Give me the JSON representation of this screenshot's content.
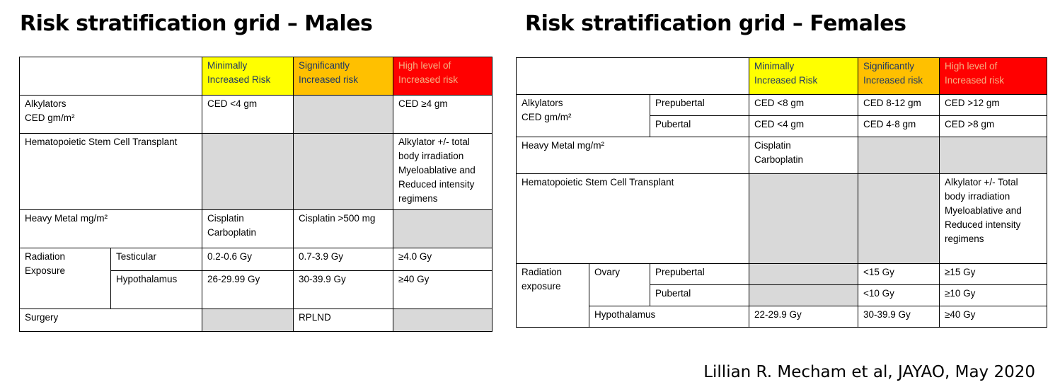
{
  "males": {
    "title": "Risk stratification grid – Males",
    "headers": {
      "minimal": "Minimally\nIncreased Risk",
      "significant": "Significantly\nIncreased risk",
      "high": "High level of\nIncreased risk"
    },
    "rows": {
      "alkylators": {
        "label": "Alkylators\nCED gm/m²",
        "minimal": "CED <4 gm",
        "high": "CED ≥4 gm"
      },
      "hsct": {
        "label": "Hematopoietic  Stem Cell Transplant",
        "high": "Alkylator +/- total\nbody irradiation\nMyeloablative  and\nReduced intensity\nregimens"
      },
      "heavy_metal": {
        "label": "Heavy Metal mg/m²",
        "minimal": "Cisplatin\nCarboplatin",
        "significant": "Cisplatin >500 mg"
      },
      "radiation": {
        "label": "Radiation\nExposure",
        "testicular": {
          "label": "Testicular",
          "minimal": "0.2-0.6 Gy",
          "significant": "0.7-3.9 Gy",
          "high": "≥4.0 Gy"
        },
        "hypothalamus": {
          "label": "Hypothalamus",
          "minimal": "26-29.99 Gy",
          "significant": "30-39.9 Gy",
          "high": "≥40 Gy"
        }
      },
      "surgery": {
        "label": "Surgery",
        "significant": "RPLND"
      }
    }
  },
  "females": {
    "title": "Risk stratification grid – Females",
    "headers": {
      "minimal": "Minimally\nIncreased Risk",
      "significant": "Significantly\nIncreased risk",
      "high": "High level of\nIncreased risk"
    },
    "rows": {
      "alkylators": {
        "label": "Alkylators\nCED gm/m²",
        "prepubertal": {
          "label": "Prepubertal",
          "minimal": "CED <8 gm",
          "significant": "CED 8-12 gm",
          "high": "CED >12 gm"
        },
        "pubertal": {
          "label": "Pubertal",
          "minimal": "CED <4 gm",
          "significant": "CED 4-8 gm",
          "high": "CED >8 gm"
        }
      },
      "heavy_metal": {
        "label": "Heavy Metal mg/m²",
        "minimal": "Cisplatin\nCarboplatin"
      },
      "hsct": {
        "label": "Hematopoietic  Stem Cell Transplant",
        "high": "Alkylator +/- Total\nbody irradiation\nMyeloablative  and\nReduced  intensity\nregimens"
      },
      "radiation": {
        "label": "Radiation\nexposure",
        "ovary": {
          "label": "Ovary",
          "prepubertal": {
            "label": "Prepubertal",
            "significant": "<15 Gy",
            "high": "≥15 Gy"
          },
          "pubertal": {
            "label": "Pubertal",
            "significant": "<10 Gy",
            "high": "≥10 Gy"
          }
        },
        "hypothalamus": {
          "label": "Hypothalamus",
          "minimal": "22-29.9 Gy",
          "significant": "30-39.9 Gy",
          "high": "≥40 Gy"
        }
      }
    }
  },
  "citation": "Lillian R. Mecham et al, JAYAO, May 2020",
  "colors": {
    "minimal": "#ffff00",
    "significant": "#ffc000",
    "high": "#ff0000",
    "empty": "#d9d9d9"
  }
}
